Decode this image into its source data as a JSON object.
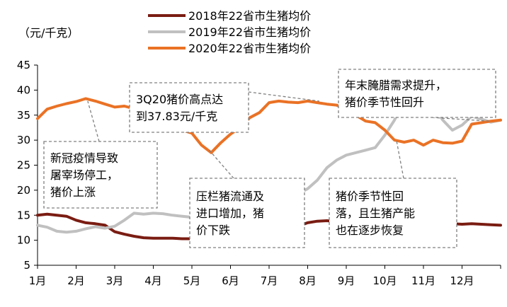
{
  "chart_data": {
    "type": "line",
    "unit_label": "（元/千克）",
    "x_ticks": [
      "1月",
      "2月",
      "3月",
      "4月",
      "5月",
      "6月",
      "7月",
      "8月",
      "9月",
      "10月",
      "11月",
      "12月"
    ],
    "y_ticks": [
      "5",
      "10",
      "15",
      "20",
      "25",
      "30",
      "35",
      "40",
      "45"
    ],
    "ylim": [
      5,
      45
    ],
    "xlim": [
      1,
      13
    ],
    "grid": false,
    "legend_position": "top-center",
    "series": [
      {
        "name": "2018年22省市生猪均价",
        "color": "#7a1c12",
        "points": [
          [
            1.0,
            15.0
          ],
          [
            1.25,
            15.2
          ],
          [
            1.5,
            15.0
          ],
          [
            1.75,
            14.8
          ],
          [
            2.0,
            14.0
          ],
          [
            2.25,
            13.5
          ],
          [
            2.5,
            13.3
          ],
          [
            2.75,
            13.0
          ],
          [
            3.0,
            11.7
          ],
          [
            3.25,
            11.2
          ],
          [
            3.5,
            10.8
          ],
          [
            3.75,
            10.5
          ],
          [
            4.0,
            10.4
          ],
          [
            4.25,
            10.4
          ],
          [
            4.5,
            10.4
          ],
          [
            4.75,
            10.3
          ],
          [
            5.0,
            10.3
          ],
          [
            5.25,
            10.2
          ],
          [
            5.5,
            10.1
          ],
          [
            5.75,
            10.8
          ],
          [
            6.0,
            11.0
          ],
          [
            6.25,
            11.2
          ],
          [
            6.5,
            11.5
          ],
          [
            6.75,
            11.6
          ],
          [
            7.0,
            11.8
          ],
          [
            7.25,
            12.6
          ],
          [
            7.5,
            12.4
          ],
          [
            7.75,
            12.8
          ],
          [
            8.0,
            13.5
          ],
          [
            8.25,
            13.8
          ],
          [
            8.5,
            13.9
          ],
          [
            8.75,
            13.7
          ],
          [
            9.0,
            14.0
          ],
          [
            9.25,
            14.2
          ],
          [
            9.5,
            14.0
          ],
          [
            9.75,
            13.9
          ],
          [
            10.0,
            13.7
          ],
          [
            10.25,
            13.8
          ],
          [
            10.5,
            13.6
          ],
          [
            10.75,
            13.4
          ],
          [
            11.0,
            13.2
          ],
          [
            11.25,
            13.2
          ],
          [
            11.5,
            13.1
          ],
          [
            11.75,
            13.3
          ],
          [
            12.0,
            13.2
          ],
          [
            12.25,
            13.3
          ],
          [
            12.5,
            13.2
          ],
          [
            12.75,
            13.1
          ],
          [
            13.0,
            13.0
          ]
        ]
      },
      {
        "name": "2019年22省市生猪均价",
        "color": "#c0c0c0",
        "points": [
          [
            1.0,
            13.0
          ],
          [
            1.25,
            12.6
          ],
          [
            1.5,
            11.8
          ],
          [
            1.75,
            11.6
          ],
          [
            2.0,
            11.8
          ],
          [
            2.25,
            12.3
          ],
          [
            2.5,
            12.7
          ],
          [
            2.75,
            12.4
          ],
          [
            3.0,
            12.8
          ],
          [
            3.25,
            14.0
          ],
          [
            3.5,
            15.4
          ],
          [
            3.75,
            15.2
          ],
          [
            4.0,
            15.4
          ],
          [
            4.25,
            15.3
          ],
          [
            4.5,
            15.0
          ],
          [
            4.75,
            14.8
          ],
          [
            5.0,
            14.6
          ],
          [
            5.25,
            14.7
          ],
          [
            5.5,
            15.0
          ],
          [
            5.75,
            15.5
          ],
          [
            6.0,
            16.4
          ],
          [
            6.25,
            17.3
          ],
          [
            6.5,
            18.0
          ],
          [
            6.75,
            18.3
          ],
          [
            7.0,
            18.8
          ],
          [
            7.25,
            19.2
          ],
          [
            7.5,
            19.2
          ],
          [
            7.75,
            19.3
          ],
          [
            8.0,
            20.3
          ],
          [
            8.25,
            22.0
          ],
          [
            8.5,
            24.5
          ],
          [
            8.75,
            26.0
          ],
          [
            9.0,
            27.0
          ],
          [
            9.25,
            27.5
          ],
          [
            9.5,
            28.0
          ],
          [
            9.75,
            28.5
          ],
          [
            10.0,
            31.0
          ],
          [
            10.25,
            34.0
          ],
          [
            10.5,
            38.0
          ],
          [
            10.75,
            40.5
          ],
          [
            11.0,
            40.0
          ],
          [
            11.25,
            37.0
          ],
          [
            11.5,
            34.0
          ],
          [
            11.75,
            32.0
          ],
          [
            12.0,
            33.0
          ],
          [
            12.25,
            34.8
          ],
          [
            12.5,
            34.2
          ],
          [
            12.75,
            33.6
          ],
          [
            13.0,
            34.0
          ]
        ]
      },
      {
        "name": "2020年22省市生猪均价",
        "color": "#ea7225",
        "points": [
          [
            1.0,
            34.3
          ],
          [
            1.25,
            36.2
          ],
          [
            1.5,
            36.8
          ],
          [
            1.75,
            37.3
          ],
          [
            2.0,
            37.7
          ],
          [
            2.25,
            38.3
          ],
          [
            2.5,
            37.8
          ],
          [
            2.75,
            37.2
          ],
          [
            3.0,
            36.6
          ],
          [
            3.25,
            36.8
          ],
          [
            3.5,
            36.3
          ],
          [
            3.75,
            35.0
          ],
          [
            4.0,
            34.0
          ],
          [
            4.25,
            33.0
          ],
          [
            4.5,
            32.5
          ],
          [
            4.75,
            32.0
          ],
          [
            5.0,
            31.4
          ],
          [
            5.25,
            29.0
          ],
          [
            5.5,
            27.5
          ],
          [
            5.75,
            29.5
          ],
          [
            6.0,
            31.2
          ],
          [
            6.25,
            32.5
          ],
          [
            6.5,
            34.5
          ],
          [
            6.75,
            35.5
          ],
          [
            7.0,
            37.5
          ],
          [
            7.25,
            37.8
          ],
          [
            7.5,
            37.6
          ],
          [
            7.75,
            37.5
          ],
          [
            8.0,
            37.8
          ],
          [
            8.25,
            37.5
          ],
          [
            8.5,
            37.2
          ],
          [
            8.75,
            37.0
          ],
          [
            9.0,
            36.2
          ],
          [
            9.25,
            35.0
          ],
          [
            9.5,
            33.8
          ],
          [
            9.75,
            33.5
          ],
          [
            10.0,
            32.0
          ],
          [
            10.25,
            30.0
          ],
          [
            10.5,
            29.6
          ],
          [
            10.75,
            30.0
          ],
          [
            11.0,
            29.0
          ],
          [
            11.25,
            30.0
          ],
          [
            11.5,
            29.5
          ],
          [
            11.75,
            29.4
          ],
          [
            12.0,
            29.8
          ],
          [
            12.25,
            33.2
          ],
          [
            12.5,
            33.5
          ],
          [
            12.75,
            33.8
          ],
          [
            13.0,
            34.0
          ]
        ]
      }
    ],
    "annotations": [
      {
        "lines": [
          "新冠疫情导致",
          "屠宰场停工，",
          "猪价上涨"
        ],
        "target": [
          2.3,
          37.8
        ]
      },
      {
        "lines": [
          "3Q20猪价高点达",
          "到37.83元/千克"
        ],
        "target": [
          8.3,
          37.8
        ]
      },
      {
        "lines": [
          "压栏猪流通及",
          "进口增加，猪",
          "价下跌"
        ],
        "target": [
          5.45,
          28.0
        ]
      },
      {
        "lines": [
          "年末腌腊需求提升，",
          "猪价季节性回升"
        ],
        "target": [
          12.7,
          33.8
        ]
      },
      {
        "lines": [
          "猪价季节性回",
          "落，且生猪产能",
          "也在逐步恢复"
        ],
        "target": [
          10.3,
          30.0
        ]
      }
    ]
  }
}
